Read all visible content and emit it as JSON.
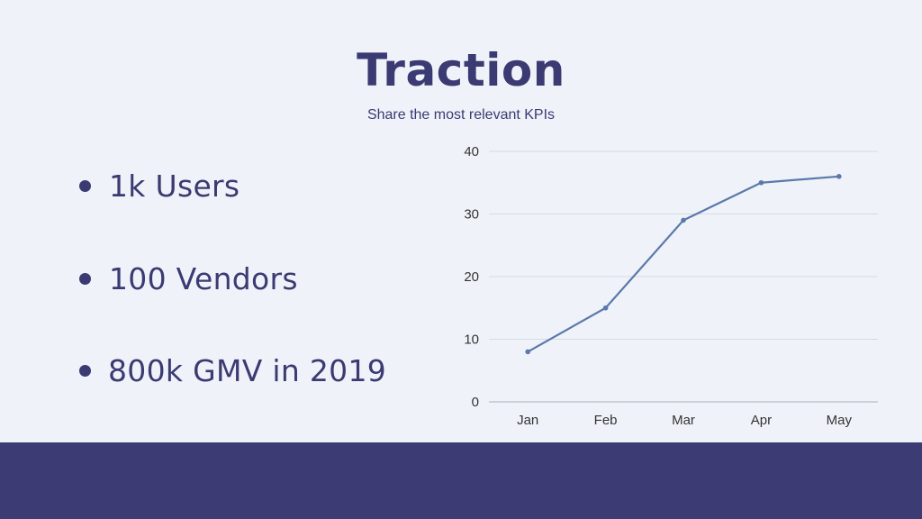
{
  "slide": {
    "title": "Traction",
    "subtitle": "Share the most relevant KPIs"
  },
  "bullets": [
    "1k Users",
    "100 Vendors",
    "800k GMV in 2019"
  ],
  "colors": {
    "background": "#eff3f9",
    "text": "#3b3a72",
    "footer": "#3d3b73",
    "line": "#5b79ab",
    "grid": "#d5dbe3",
    "axis": "#b6bcc4",
    "tick_label": "#333333"
  },
  "chart_data": {
    "type": "line",
    "categories": [
      "Jan",
      "Feb",
      "Mar",
      "Apr",
      "May"
    ],
    "values": [
      8,
      15,
      29,
      35,
      36
    ],
    "ylim": [
      0,
      40
    ],
    "yticks": [
      0,
      10,
      20,
      30,
      40
    ],
    "grid": true,
    "legend": "none",
    "title": "",
    "xlabel": "",
    "ylabel": ""
  }
}
